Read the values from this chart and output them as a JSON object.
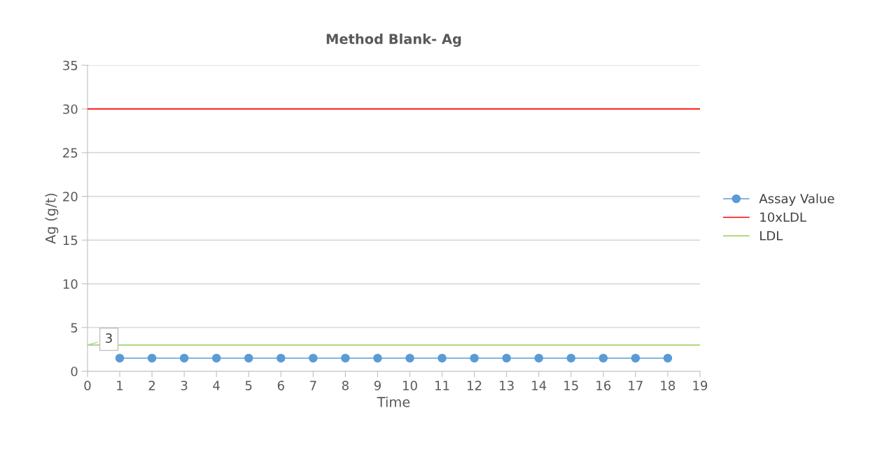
{
  "chart_data": {
    "type": "line",
    "title": "Method Blank- Ag",
    "xlabel": "Time",
    "ylabel": "Ag (g/t)",
    "xlim": [
      0,
      19
    ],
    "xticks": [
      0,
      1,
      2,
      3,
      4,
      5,
      6,
      7,
      8,
      9,
      10,
      11,
      12,
      13,
      14,
      15,
      16,
      17,
      18,
      19
    ],
    "ylim": [
      0,
      35
    ],
    "yticks": [
      0,
      5,
      10,
      15,
      20,
      25,
      30,
      35
    ],
    "grid": "y",
    "legend": "right",
    "series": [
      {
        "name": "Assay Value",
        "color": "#5b9bd5",
        "marker": "circle",
        "x": [
          1,
          2,
          3,
          4,
          5,
          6,
          7,
          8,
          9,
          10,
          11,
          12,
          13,
          14,
          15,
          16,
          17,
          18
        ],
        "values": [
          1.5,
          1.5,
          1.5,
          1.5,
          1.5,
          1.5,
          1.5,
          1.5,
          1.5,
          1.5,
          1.5,
          1.5,
          1.5,
          1.5,
          1.5,
          1.5,
          1.5,
          1.5
        ]
      },
      {
        "name": "10xLDL",
        "color": "#ff0000",
        "marker": "none",
        "x": [
          0,
          19
        ],
        "values": [
          30,
          30
        ]
      },
      {
        "name": "LDL",
        "color": "#92d050",
        "marker": "none",
        "x": [
          0,
          19
        ],
        "values": [
          3,
          3
        ]
      }
    ],
    "annotations": [
      {
        "text": "3",
        "x": 0,
        "y": 3
      }
    ]
  }
}
